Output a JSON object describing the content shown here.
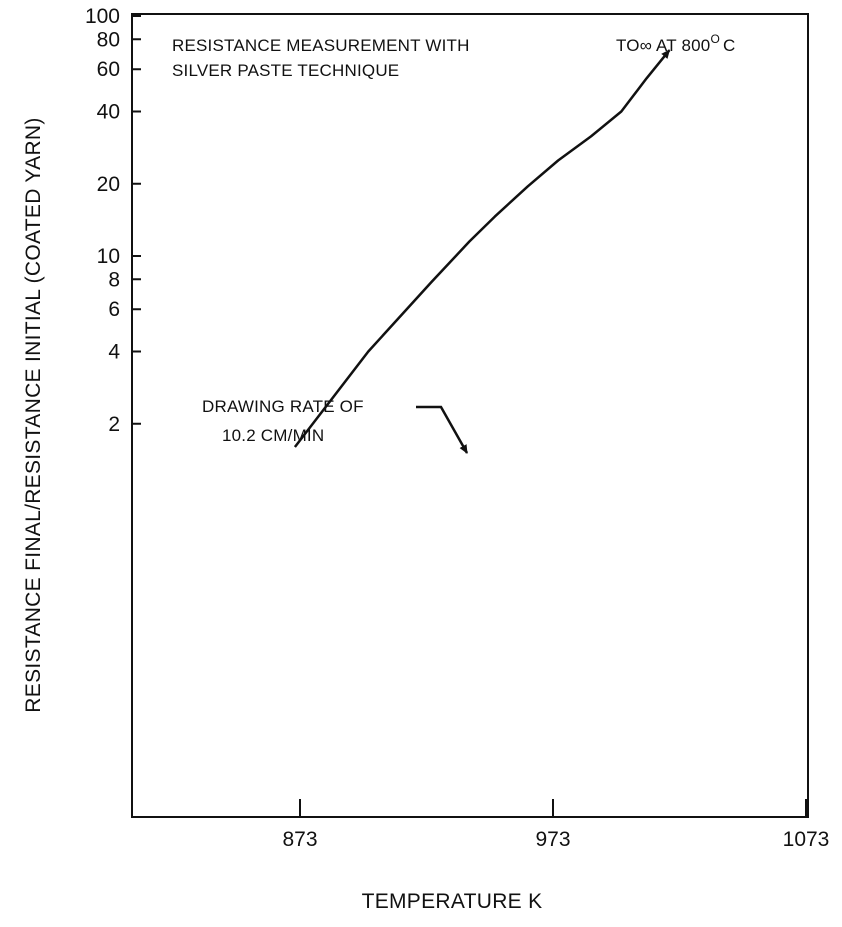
{
  "chart_data": {
    "type": "line",
    "title": "",
    "xlabel": "TEMPERATURE K",
    "ylabel": "RESISTANCE FINAL/RESISTANCE INITIAL (COATED YARN)",
    "xlim": [
      850,
      1073
    ],
    "ylim": [
      1,
      100
    ],
    "yscale": "log",
    "x_ticks": [
      873,
      973,
      1073
    ],
    "y_ticks": [
      2,
      4,
      6,
      8,
      10,
      20,
      40,
      60,
      80,
      100
    ],
    "grid": false,
    "series": [
      {
        "x": [
          871,
          900,
          925,
          940,
          950,
          963,
          975,
          988,
          1000,
          1010,
          1019
        ],
        "y": [
          1.6,
          4.0,
          7.8,
          11.5,
          14.6,
          19.5,
          25,
          31.5,
          40,
          55,
          72
        ],
        "arrow_end": true
      }
    ],
    "annotations": {
      "measurement_line1": "RESISTANCE MEASUREMENT WITH",
      "measurement_line2": "SILVER PASTE TECHNIQUE",
      "infinity_label": "TO∞ AT 800",
      "infinity_degree": "O",
      "infinity_unit": "C",
      "drawing_rate_line1": "DRAWING RATE OF",
      "drawing_rate_line2": "10.2 CM/MIN"
    }
  }
}
